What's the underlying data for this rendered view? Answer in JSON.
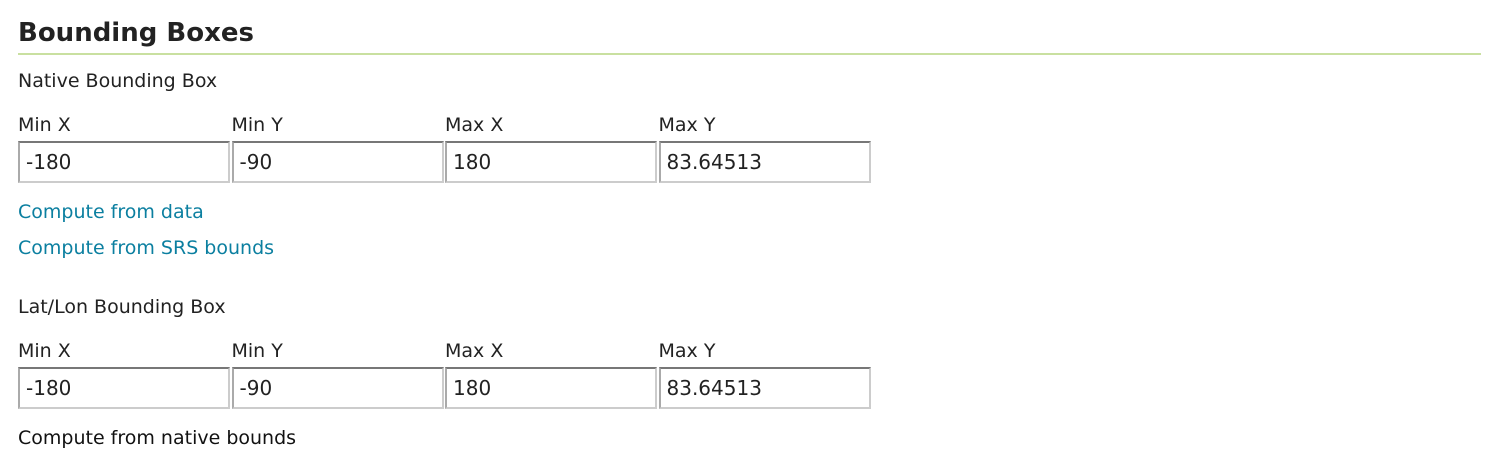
{
  "section_title": "Bounding Boxes",
  "native": {
    "label": "Native Bounding Box",
    "fields": [
      {
        "label": "Min X",
        "value": "-180"
      },
      {
        "label": "Min Y",
        "value": "-90"
      },
      {
        "label": "Max X",
        "value": "180"
      },
      {
        "label": "Max Y",
        "value": "83.64513"
      }
    ],
    "compute_from_data": "Compute from data",
    "compute_from_srs": "Compute from SRS bounds"
  },
  "latlon": {
    "label": "Lat/Lon Bounding Box",
    "fields": [
      {
        "label": "Min X",
        "value": "-180"
      },
      {
        "label": "Min Y",
        "value": "-90"
      },
      {
        "label": "Max X",
        "value": "180"
      },
      {
        "label": "Max Y",
        "value": "83.64513"
      }
    ],
    "compute_from_native": "Compute from native bounds"
  },
  "colors": {
    "link": "#0b7fa0",
    "rule": "#c9e0a0"
  }
}
